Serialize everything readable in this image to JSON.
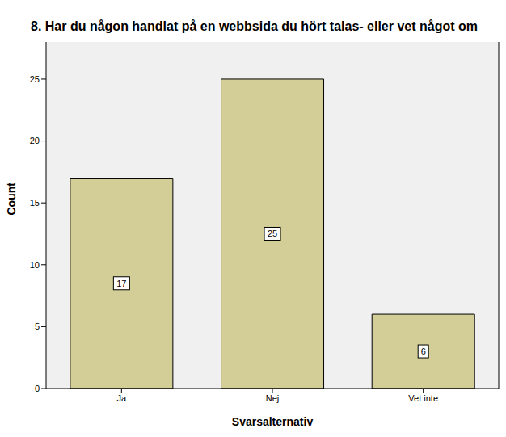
{
  "chart_data": {
    "type": "bar",
    "title": "8. Har du någon handlat på en webbsida du hört talas- eller vet något om",
    "x_label": "Svarsalternativ",
    "y_label": "Count",
    "categories": [
      "Ja",
      "Nej",
      "Vet inte"
    ],
    "values": [
      17,
      25,
      6
    ],
    "color": "#d3ce97",
    "ylim": [
      0,
      28
    ],
    "yticks": [
      0,
      5,
      10,
      15,
      20,
      25
    ],
    "grid": false,
    "data_labels": true
  }
}
